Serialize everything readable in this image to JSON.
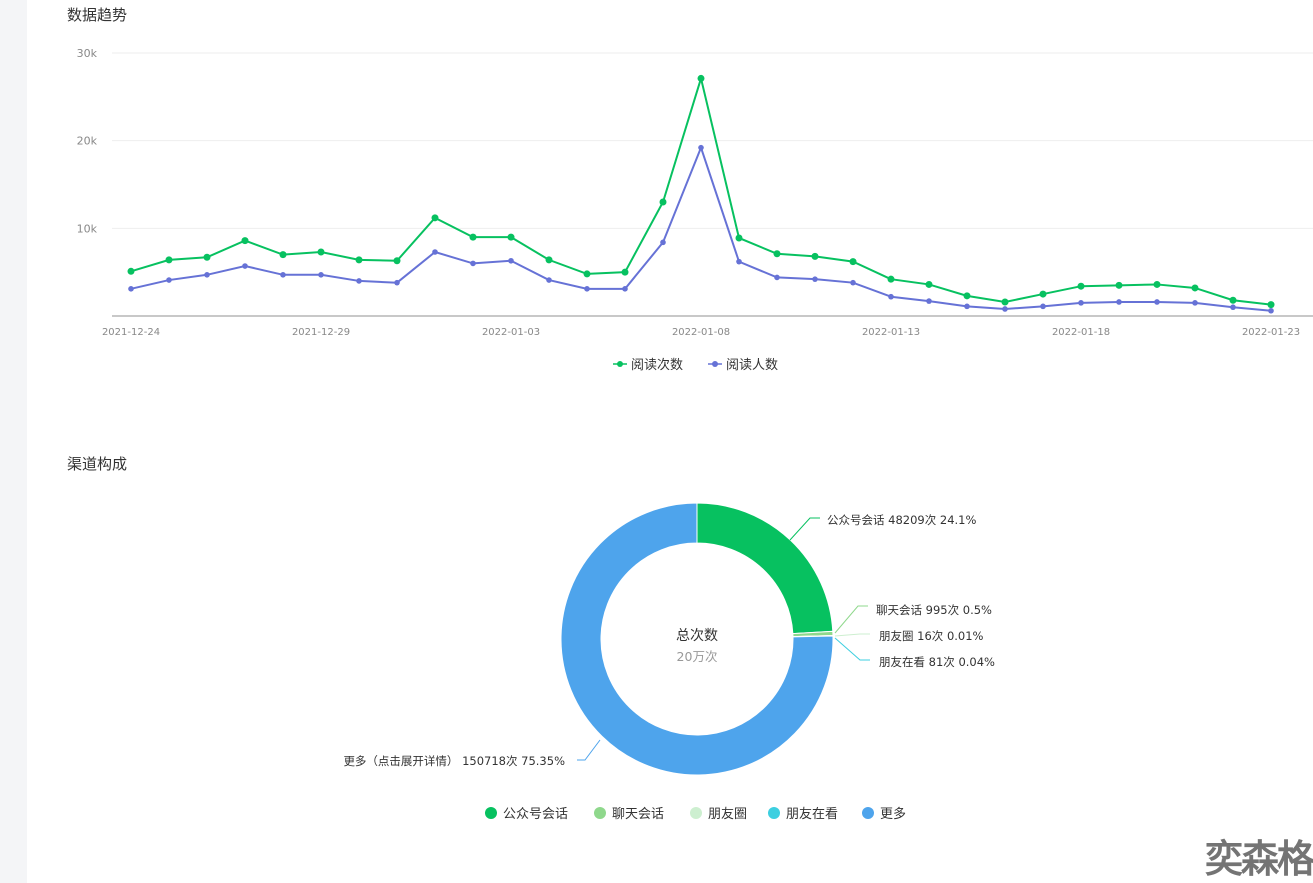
{
  "trend": {
    "title": "数据趋势"
  },
  "channel": {
    "title": "渠道构成"
  },
  "watermark": "奕森格",
  "chart_data": [
    {
      "type": "line",
      "title": "数据趋势",
      "ylim": [
        0,
        30000
      ],
      "yticks": [
        "10k",
        "20k",
        "30k"
      ],
      "ytick_values": [
        10000,
        20000,
        30000
      ],
      "grid": true,
      "legend_position": "bottom",
      "x": [
        "2021-12-24",
        "2021-12-25",
        "2021-12-26",
        "2021-12-27",
        "2021-12-28",
        "2021-12-29",
        "2021-12-30",
        "2021-12-31",
        "2022-01-01",
        "2022-01-02",
        "2022-01-03",
        "2022-01-04",
        "2022-01-05",
        "2022-01-06",
        "2022-01-07",
        "2022-01-08",
        "2022-01-09",
        "2022-01-10",
        "2022-01-11",
        "2022-01-12",
        "2022-01-13",
        "2022-01-14",
        "2022-01-15",
        "2022-01-16",
        "2022-01-17",
        "2022-01-18",
        "2022-01-19",
        "2022-01-20",
        "2022-01-21",
        "2022-01-22",
        "2022-01-23"
      ],
      "xtick_labels": [
        "2021-12-24",
        "2021-12-29",
        "2022-01-03",
        "2022-01-08",
        "2022-01-13",
        "2022-01-18",
        "2022-01-23"
      ],
      "series": [
        {
          "name": "阅读次数",
          "color": "#07c160",
          "values": [
            5100,
            6400,
            6700,
            8600,
            7000,
            7300,
            6400,
            6300,
            11200,
            9000,
            9000,
            6400,
            4800,
            5000,
            13000,
            27100,
            8900,
            7100,
            6800,
            6200,
            4200,
            3600,
            2300,
            1600,
            2500,
            3400,
            3500,
            3600,
            3200,
            1800,
            1300
          ]
        },
        {
          "name": "阅读人数",
          "color": "#6672d6",
          "values": [
            3100,
            4100,
            4700,
            5700,
            4700,
            4700,
            4000,
            3800,
            7300,
            6000,
            6300,
            4100,
            3100,
            3100,
            8400,
            19200,
            6200,
            4400,
            4200,
            3800,
            2200,
            1700,
            1100,
            800,
            1100,
            1500,
            1600,
            1600,
            1500,
            1000,
            600
          ]
        }
      ]
    },
    {
      "type": "pie",
      "title": "渠道构成",
      "center_label": "总次数",
      "center_value": "20万次",
      "slices": [
        {
          "name": "公众号会话",
          "count": 48209,
          "percent": 24.1,
          "label": "公众号会话 48209次 24.1%",
          "color": "#07c160"
        },
        {
          "name": "聊天会话",
          "count": 995,
          "percent": 0.5,
          "label": "聊天会话 995次 0.5%",
          "color": "#8fd88c"
        },
        {
          "name": "朋友圈",
          "count": 16,
          "percent": 0.01,
          "label": "朋友圈 16次 0.01%",
          "color": "#cdefd0"
        },
        {
          "name": "朋友在看",
          "count": 81,
          "percent": 0.04,
          "label": "朋友在看 81次 0.04%",
          "color": "#3dcfe0"
        },
        {
          "name": "更多",
          "count": 150718,
          "percent": 75.35,
          "label": "更多（点击展开详情） 150718次 75.35%",
          "color": "#4ea4ec"
        }
      ],
      "legend_position": "bottom"
    }
  ]
}
